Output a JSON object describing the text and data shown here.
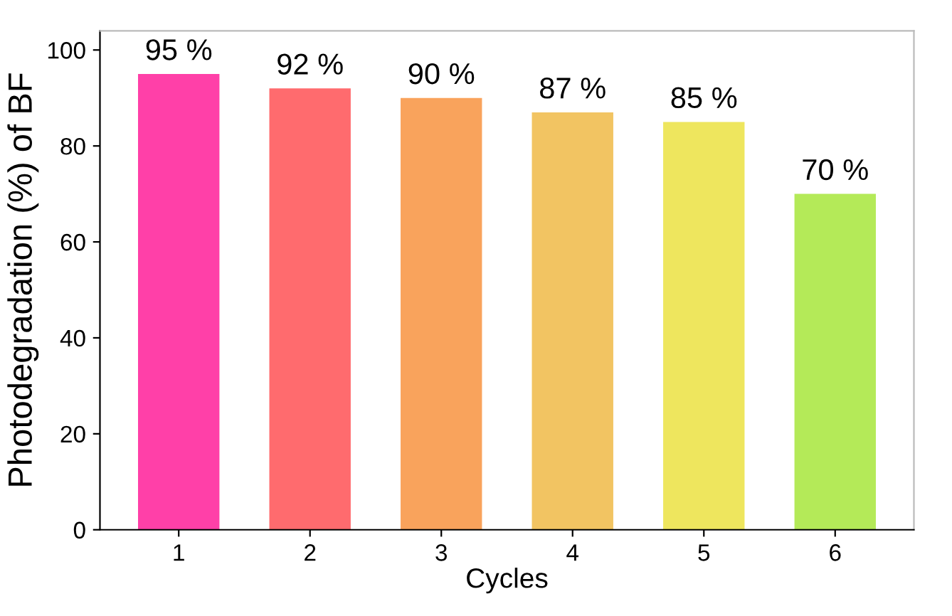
{
  "chart_data": {
    "type": "bar",
    "xlabel": "Cycles",
    "ylabel": "Photodegradation (%) of BF",
    "categories": [
      "1",
      "2",
      "3",
      "4",
      "5",
      "6"
    ],
    "values": [
      95,
      92,
      90,
      87,
      85,
      70
    ],
    "value_labels": [
      "95 %",
      "92 %",
      "90 %",
      "87 %",
      "85 %",
      "70 %"
    ],
    "colors": [
      "#ff40a8",
      "#ff6b6e",
      "#f9a35c",
      "#f2c462",
      "#eee65e",
      "#b4ea58"
    ],
    "ylim": [
      0,
      104
    ],
    "yticks": [
      0,
      20,
      40,
      60,
      80,
      100
    ],
    "grid": false,
    "legend": false
  }
}
